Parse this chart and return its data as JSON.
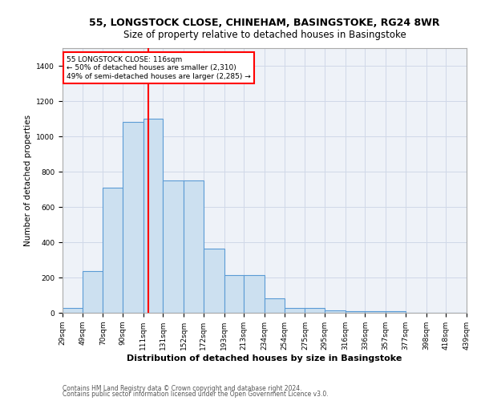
{
  "title1": "55, LONGSTOCK CLOSE, CHINEHAM, BASINGSTOKE, RG24 8WR",
  "title2": "Size of property relative to detached houses in Basingstoke",
  "xlabel": "Distribution of detached houses by size in Basingstoke",
  "ylabel": "Number of detached properties",
  "footnote1": "Contains HM Land Registry data © Crown copyright and database right 2024.",
  "footnote2": "Contains public sector information licensed under the Open Government Licence v3.0.",
  "bar_color": "#cce0f0",
  "bar_edge_color": "#5b9bd5",
  "annotation_line_color": "red",
  "property_size": 116,
  "annotation_text_line1": "55 LONGSTOCK CLOSE: 116sqm",
  "annotation_text_line2": "← 50% of detached houses are smaller (2,310)",
  "annotation_text_line3": "49% of semi-detached houses are larger (2,285) →",
  "bin_edges": [
    29,
    49,
    70,
    90,
    111,
    131,
    152,
    172,
    193,
    213,
    234,
    254,
    275,
    295,
    316,
    336,
    357,
    377,
    398,
    418,
    439
  ],
  "bin_labels": [
    "29sqm",
    "49sqm",
    "70sqm",
    "90sqm",
    "111sqm",
    "131sqm",
    "152sqm",
    "172sqm",
    "193sqm",
    "213sqm",
    "234sqm",
    "254sqm",
    "275sqm",
    "295sqm",
    "316sqm",
    "336sqm",
    "357sqm",
    "377sqm",
    "398sqm",
    "418sqm",
    "439sqm"
  ],
  "bar_heights": [
    29,
    235,
    710,
    1080,
    1100,
    750,
    750,
    365,
    215,
    215,
    80,
    28,
    28,
    13,
    10,
    10,
    8,
    0,
    0,
    0
  ],
  "ylim": [
    0,
    1500
  ],
  "yticks": [
    0,
    200,
    400,
    600,
    800,
    1000,
    1200,
    1400
  ],
  "grid_color": "#d0d8e8",
  "background_color": "#eef2f8",
  "title1_fontsize": 9,
  "title2_fontsize": 8.5,
  "ylabel_fontsize": 7.5,
  "xlabel_fontsize": 8,
  "tick_fontsize": 6.5,
  "footnote_fontsize": 5.5,
  "annotation_fontsize": 6.5
}
